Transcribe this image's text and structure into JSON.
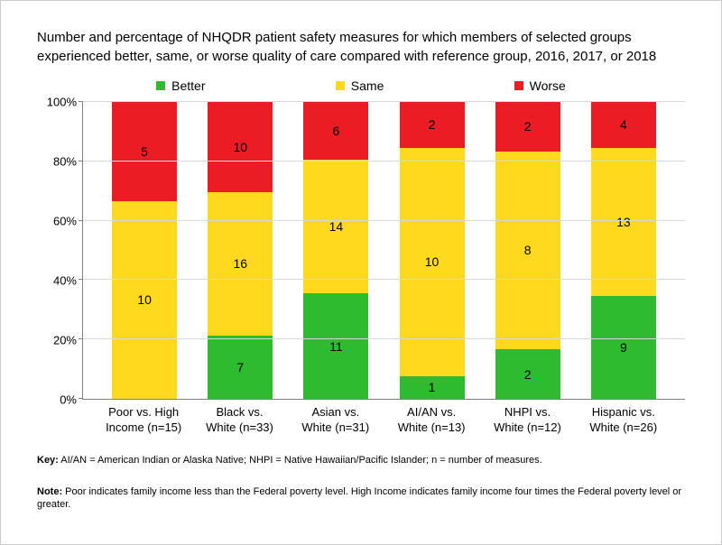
{
  "title": "Number and percentage of NHQDR patient safety measures for which members of selected groups experienced better, same, or worse quality of care compared with reference group, 2016, 2017, or 2018",
  "chart": {
    "type": "stacked-bar-100pct",
    "background_color": "#ffffff",
    "grid_color": "#d9d9d9",
    "axis_color": "#808080",
    "font_size_title": 15,
    "font_size_axis": 13,
    "font_size_value": 14,
    "ylim": [
      0,
      100
    ],
    "ytick_step": 20,
    "y_ticks": [
      "0%",
      "20%",
      "40%",
      "60%",
      "80%",
      "100%"
    ],
    "legend": {
      "items": [
        {
          "label": "Better",
          "color": "#2fbb2f"
        },
        {
          "label": "Same",
          "color": "#ffd91d"
        },
        {
          "label": "Worse",
          "color": "#ec1c24"
        }
      ]
    },
    "categories": [
      {
        "line1": "Poor vs. High",
        "line2": "Income (n=15)",
        "better": 0,
        "same": 10,
        "worse": 5
      },
      {
        "line1": "Black vs.",
        "line2": "White (n=33)",
        "better": 7,
        "same": 16,
        "worse": 10
      },
      {
        "line1": "Asian vs.",
        "line2": "White (n=31)",
        "better": 11,
        "same": 14,
        "worse": 6
      },
      {
        "line1": "AI/AN vs.",
        "line2": "White (n=13)",
        "better": 1,
        "same": 10,
        "worse": 2
      },
      {
        "line1": "NHPI vs.",
        "line2": "White (n=12)",
        "better": 2,
        "same": 8,
        "worse": 2
      },
      {
        "line1": "Hispanic vs.",
        "line2": "White (n=26)",
        "better": 9,
        "same": 13,
        "worse": 4
      }
    ]
  },
  "key": {
    "label": "Key:",
    "text": " AI/AN = American Indian or Alaska Native; NHPI = Native Hawaiian/Pacific Islander; n = number of measures."
  },
  "note": {
    "label": "Note:",
    "text": " Poor indicates family income less than the Federal poverty level. High Income indicates family income four times the Federal poverty level or greater."
  }
}
